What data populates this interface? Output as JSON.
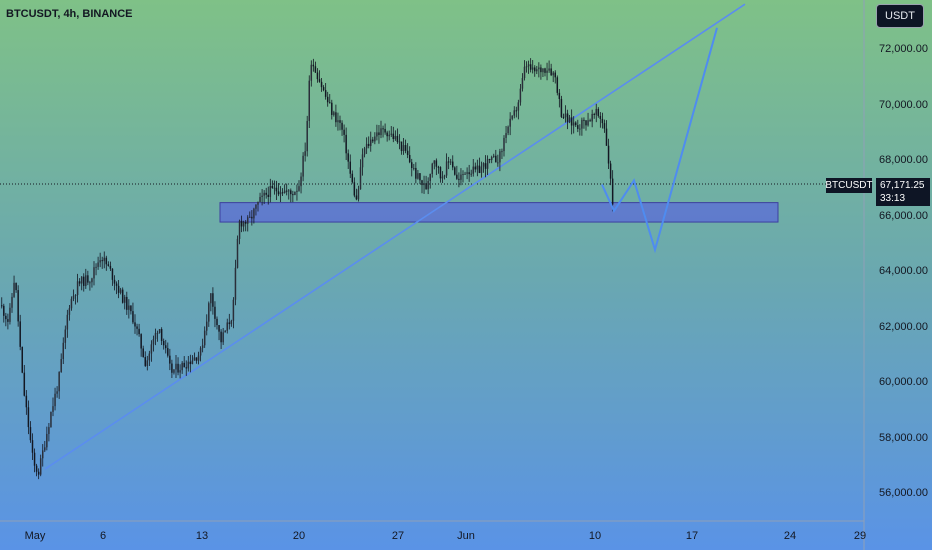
{
  "header": {
    "title": "BTCUSDT, 4h, BINANCE",
    "currency_button": "USDT"
  },
  "price_tags": {
    "symbol": "BTCUSDT",
    "last_price": "67,171.25",
    "countdown": "33:13"
  },
  "colors": {
    "bull": "#2a2e39",
    "bear": "#131722",
    "trendline": "#5b8def",
    "zone_fill": "#5b6bd8",
    "zone_border": "#3c3fa0",
    "projection": "#4f8cf0"
  },
  "chart_data": {
    "type": "candlestick",
    "symbol": "BTCUSDT",
    "interval": "4h",
    "exchange": "BINANCE",
    "y_ticks": [
      "72,000.00",
      "70,000.00",
      "68,000.00",
      "66,000.00",
      "64,000.00",
      "62,000.00",
      "60,000.00",
      "58,000.00",
      "56,000.00"
    ],
    "y_tick_values": [
      72000,
      70000,
      68000,
      66000,
      64000,
      62000,
      60000,
      58000,
      56000
    ],
    "ylim": [
      54600,
      73700
    ],
    "x_ticks": [
      "May",
      "6",
      "13",
      "20",
      "27",
      "Jun",
      "10",
      "17",
      "24",
      "29"
    ],
    "last_price": 67171.25,
    "anchor_points": [
      [
        0,
        62800
      ],
      [
        8,
        62200
      ],
      [
        14,
        63900
      ],
      [
        22,
        60000
      ],
      [
        33,
        57000
      ],
      [
        38,
        56800
      ],
      [
        50,
        58900
      ],
      [
        58,
        60100
      ],
      [
        68,
        62800
      ],
      [
        78,
        63600
      ],
      [
        90,
        63800
      ],
      [
        100,
        64600
      ],
      [
        110,
        64000
      ],
      [
        120,
        63200
      ],
      [
        133,
        62300
      ],
      [
        145,
        60700
      ],
      [
        158,
        62100
      ],
      [
        170,
        60400
      ],
      [
        185,
        60700
      ],
      [
        200,
        61100
      ],
      [
        210,
        63200
      ],
      [
        220,
        61500
      ],
      [
        232,
        62500
      ],
      [
        238,
        65800
      ],
      [
        248,
        65800
      ],
      [
        258,
        66500
      ],
      [
        268,
        66900
      ],
      [
        280,
        67000
      ],
      [
        290,
        66800
      ],
      [
        298,
        67100
      ],
      [
        305,
        68600
      ],
      [
        310,
        71700
      ],
      [
        318,
        71000
      ],
      [
        325,
        70300
      ],
      [
        332,
        69700
      ],
      [
        340,
        69300
      ],
      [
        345,
        68500
      ],
      [
        350,
        67400
      ],
      [
        356,
        66500
      ],
      [
        362,
        68300
      ],
      [
        375,
        69000
      ],
      [
        385,
        69100
      ],
      [
        395,
        68800
      ],
      [
        405,
        68300
      ],
      [
        415,
        67500
      ],
      [
        425,
        67000
      ],
      [
        433,
        68200
      ],
      [
        440,
        67400
      ],
      [
        450,
        68100
      ],
      [
        457,
        67200
      ],
      [
        465,
        67700
      ],
      [
        475,
        67600
      ],
      [
        485,
        67900
      ],
      [
        492,
        68000
      ],
      [
        500,
        68200
      ],
      [
        505,
        69100
      ],
      [
        512,
        69500
      ],
      [
        518,
        70200
      ],
      [
        525,
        71500
      ],
      [
        532,
        71200
      ],
      [
        540,
        71300
      ],
      [
        548,
        71400
      ],
      [
        555,
        71000
      ],
      [
        560,
        69800
      ],
      [
        568,
        69400
      ],
      [
        578,
        69300
      ],
      [
        588,
        69500
      ],
      [
        596,
        69700
      ],
      [
        603,
        69400
      ],
      [
        607,
        68300
      ],
      [
        613,
        66100
      ]
    ],
    "trendlines": [
      {
        "x1": 45,
        "y1": 56900,
        "x2": 745,
        "y2": 73650
      }
    ],
    "support_zone": {
      "x1": 220,
      "x2": 778,
      "y_low": 65800,
      "y_high": 66500
    },
    "projection_path": [
      [
        602,
        67150
      ],
      [
        614,
        66200
      ],
      [
        634,
        67300
      ],
      [
        655,
        64800
      ],
      [
        717,
        72800
      ]
    ]
  }
}
